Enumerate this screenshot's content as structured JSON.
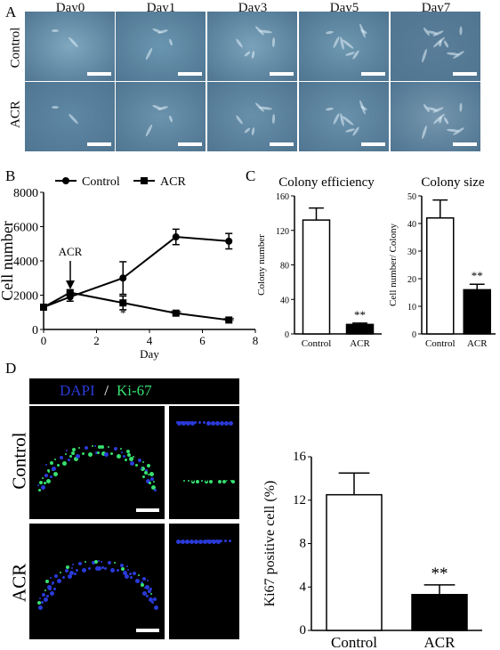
{
  "panels": {
    "a": "A",
    "b": "B",
    "c": "C",
    "d": "D"
  },
  "panel_a": {
    "days": [
      "Day0",
      "Day1",
      "Day3",
      "Day5",
      "Day7"
    ],
    "rows": [
      "Control",
      "ACR"
    ]
  },
  "panel_d": {
    "stain_dapi": "DAPI",
    "stain_sep": " / ",
    "stain_ki67": "Ki-67",
    "rows": [
      "Control",
      "ACR"
    ],
    "colors": {
      "dapi": "#2a3ad8",
      "ki67": "#36e070"
    }
  },
  "chart_data": [
    {
      "type": "line",
      "panel": "B",
      "xlabel": "Day",
      "ylabel": "Cell number",
      "xlim": [
        0,
        8
      ],
      "ylim": [
        0,
        8000
      ],
      "xticks": [
        0,
        2,
        4,
        6,
        8
      ],
      "yticks": [
        0,
        2000,
        4000,
        6000,
        8000
      ],
      "legend_position": "top",
      "annotation": "ACR",
      "series": [
        {
          "name": "Control",
          "marker": "circle",
          "x": [
            0,
            1,
            3,
            5,
            7
          ],
          "y": [
            1300,
            1900,
            3000,
            5400,
            5150
          ],
          "err": [
            100,
            250,
            950,
            450,
            450
          ]
        },
        {
          "name": "ACR",
          "marker": "square",
          "x": [
            0,
            1,
            3,
            5,
            7
          ],
          "y": [
            1300,
            2150,
            1550,
            950,
            550
          ],
          "err": [
            100,
            150,
            400,
            60,
            40
          ]
        }
      ],
      "significance": [
        {
          "x": 3,
          "y": 1150,
          "label": "*"
        },
        {
          "x": 5,
          "y": 1120,
          "label": "**"
        },
        {
          "x": 7,
          "y": 710,
          "label": "**"
        }
      ]
    },
    {
      "type": "bar",
      "panel": "C",
      "title": "Colony efficiency",
      "ylabel": "Colony number",
      "categories": [
        "Control",
        "ACR"
      ],
      "values": [
        132,
        11
      ],
      "err": [
        14,
        1.5
      ],
      "ylim": [
        0,
        160
      ],
      "yticks": [
        0,
        40,
        80,
        120,
        160
      ],
      "significance": [
        {
          "category": "ACR",
          "label": "**"
        }
      ],
      "bar_fill": [
        "#ffffff",
        "#000000"
      ]
    },
    {
      "type": "bar",
      "panel": "C",
      "title": "Colony size",
      "ylabel": "Cell number/ Colony",
      "categories": [
        "Control",
        "ACR"
      ],
      "values": [
        42,
        16
      ],
      "err": [
        6.5,
        2
      ],
      "ylim": [
        0,
        50
      ],
      "yticks": [
        0,
        10,
        20,
        30,
        40,
        50
      ],
      "significance": [
        {
          "category": "ACR",
          "label": "**"
        }
      ],
      "bar_fill": [
        "#ffffff",
        "#000000"
      ]
    },
    {
      "type": "bar",
      "panel": "D",
      "ylabel": "Ki67 positive cell  (%)",
      "categories": [
        "Control",
        "ACR"
      ],
      "values": [
        12.5,
        3.3
      ],
      "err": [
        2.0,
        0.9
      ],
      "ylim": [
        0,
        16
      ],
      "yticks": [
        0,
        4,
        8,
        12,
        16
      ],
      "significance": [
        {
          "category": "ACR",
          "label": "**"
        }
      ],
      "bar_fill": [
        "#ffffff",
        "#000000"
      ]
    }
  ]
}
